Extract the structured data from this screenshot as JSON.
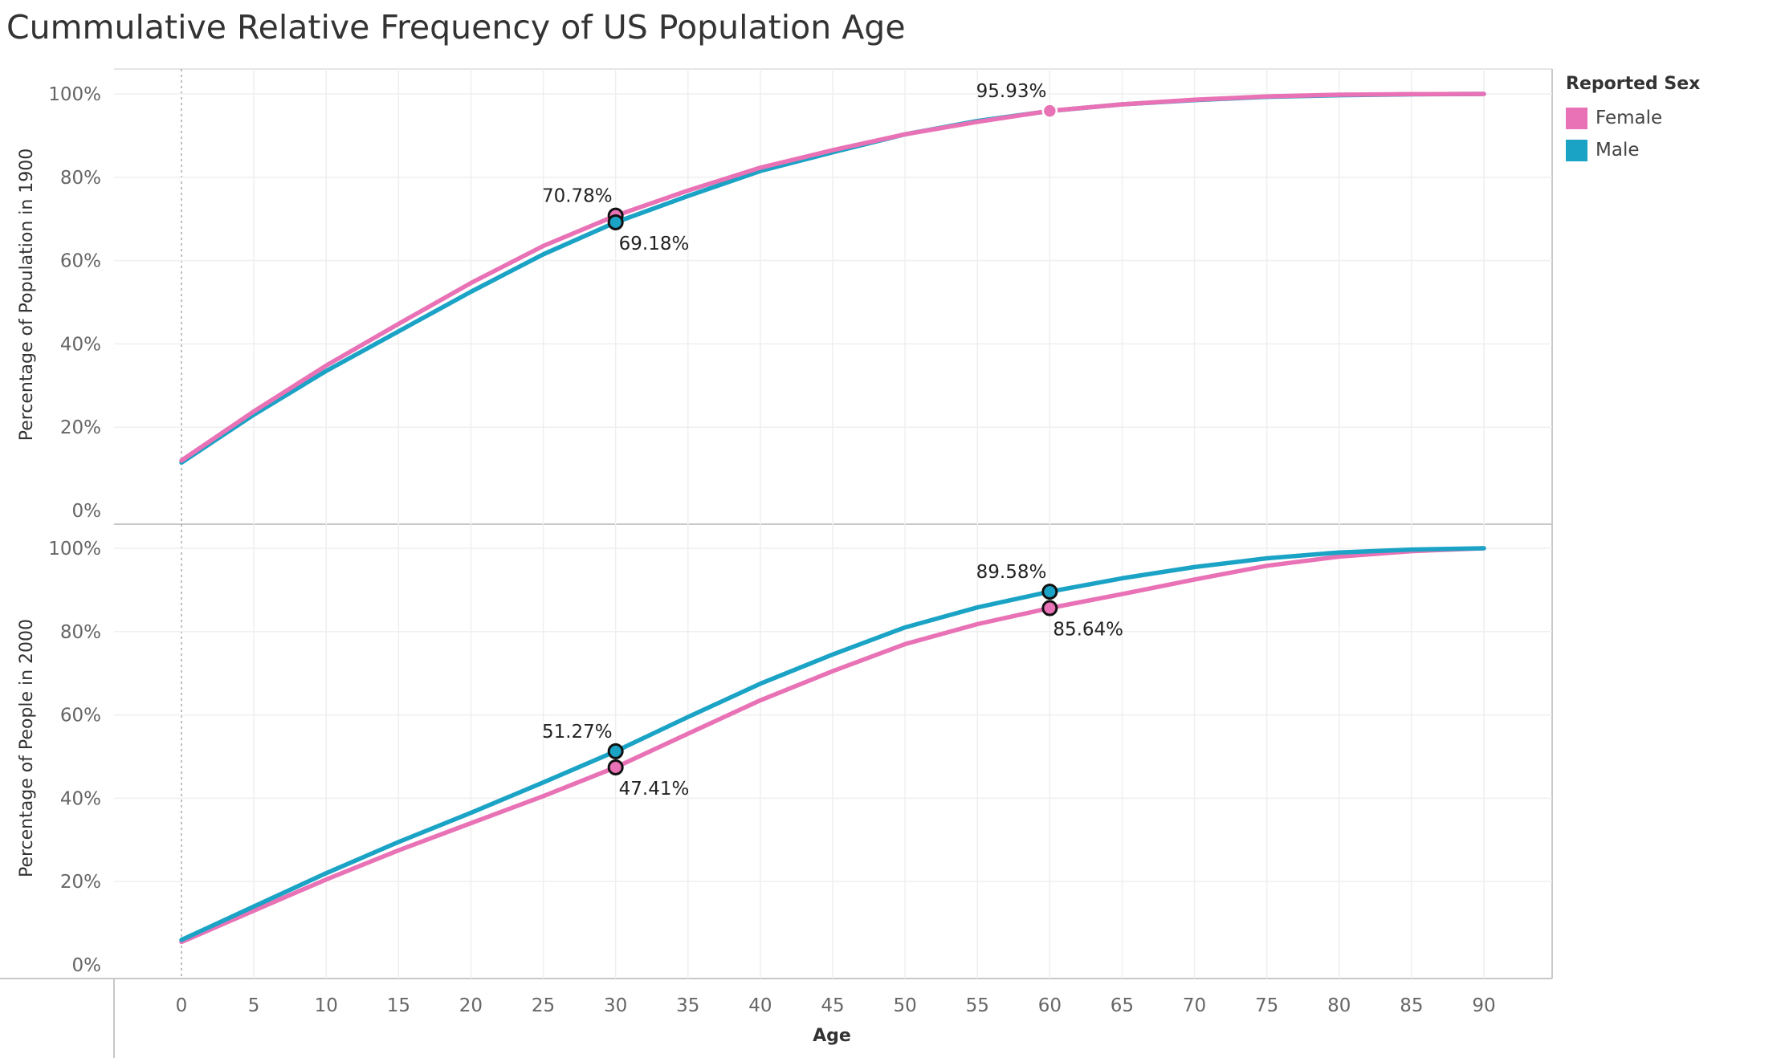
{
  "title": "Cummulative Relative Frequency of US Population Age",
  "legend": {
    "title": "Reported Sex",
    "items": [
      {
        "label": "Female",
        "color": "#e872b5"
      },
      {
        "label": "Male",
        "color": "#1ba3c6"
      }
    ]
  },
  "colors": {
    "female": "#e872b5",
    "male": "#1ba3c6"
  },
  "chart_data": {
    "type": "line",
    "x": [
      0,
      5,
      10,
      15,
      20,
      25,
      30,
      35,
      40,
      45,
      50,
      55,
      60,
      65,
      70,
      75,
      80,
      85,
      90
    ],
    "xlabel": "Age",
    "x_ticks": [
      "0",
      "5",
      "10",
      "15",
      "20",
      "25",
      "30",
      "35",
      "40",
      "45",
      "50",
      "55",
      "60",
      "65",
      "70",
      "75",
      "80",
      "85",
      "90"
    ],
    "y_ticks": [
      "0%",
      "20%",
      "40%",
      "60%",
      "80%",
      "100%"
    ],
    "ylim": [
      0,
      100
    ],
    "panels": [
      {
        "ylabel": "Percentage of Population in 1900",
        "series": [
          {
            "name": "Male",
            "values": [
              11.5,
              23.0,
              33.5,
              43.0,
              52.5,
              61.5,
              69.18,
              75.5,
              81.5,
              86.0,
              90.3,
              93.5,
              95.9,
              97.5,
              98.5,
              99.3,
              99.7,
              99.9,
              100.0
            ]
          },
          {
            "name": "Female",
            "values": [
              12.0,
              23.8,
              34.8,
              44.8,
              54.6,
              63.5,
              70.78,
              76.8,
              82.3,
              86.5,
              90.3,
              93.3,
              95.93,
              97.5,
              98.6,
              99.4,
              99.8,
              99.95,
              100.0
            ]
          }
        ],
        "annotations": [
          {
            "series": "Female",
            "x": 30,
            "label": "70.78%"
          },
          {
            "series": "Male",
            "x": 30,
            "label": "69.18%"
          },
          {
            "series": "Female",
            "x": 60,
            "label": "95.93%"
          }
        ]
      },
      {
        "ylabel": "Percentage of People in 2000",
        "series": [
          {
            "name": "Male",
            "values": [
              6.0,
              14.0,
              22.0,
              29.5,
              36.5,
              43.8,
              51.27,
              59.5,
              67.5,
              74.5,
              81.0,
              85.8,
              89.58,
              92.8,
              95.5,
              97.6,
              99.0,
              99.7,
              100.0
            ]
          },
          {
            "name": "Female",
            "values": [
              5.5,
              13.0,
              20.5,
              27.5,
              34.0,
              40.5,
              47.41,
              55.5,
              63.5,
              70.5,
              77.0,
              81.8,
              85.64,
              89.0,
              92.5,
              95.8,
              98.0,
              99.3,
              100.0
            ]
          }
        ],
        "annotations": [
          {
            "series": "Male",
            "x": 30,
            "label": "51.27%"
          },
          {
            "series": "Female",
            "x": 30,
            "label": "47.41%"
          },
          {
            "series": "Male",
            "x": 60,
            "label": "89.58%"
          },
          {
            "series": "Female",
            "x": 60,
            "label": "85.64%"
          }
        ]
      }
    ],
    "grid": true,
    "legend_position": "right"
  }
}
